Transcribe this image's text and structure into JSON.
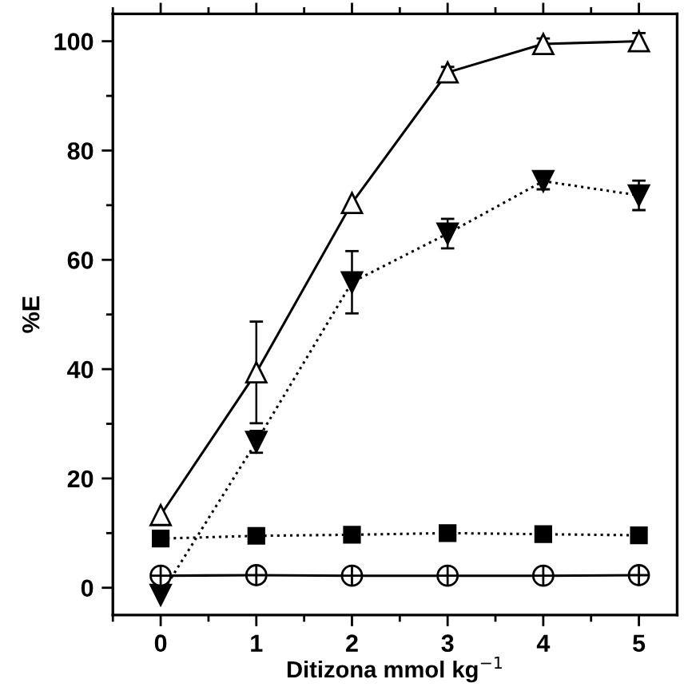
{
  "chart_data": {
    "type": "line",
    "xlabel": "Ditizona mmol kg$^{−1}$",
    "ylabel": "%E",
    "x": [
      0,
      1,
      2,
      3,
      4,
      5
    ],
    "xlim": [
      -0.5,
      5.4
    ],
    "xticks": [
      0,
      1,
      2,
      3,
      4,
      5
    ],
    "ylim": [
      -5,
      105
    ],
    "yticks": [
      0,
      20,
      40,
      60,
      80,
      100
    ],
    "grid": false,
    "legend": false,
    "series": [
      {
        "color": "#000000",
        "marker": "triangle",
        "line_style": "solid",
        "values": [
          13.3,
          39.4,
          70.4,
          94.3,
          99.5,
          100
        ],
        "errors": [
          null,
          9.3,
          null,
          1,
          1,
          1.5
        ]
      },
      {
        "color": "#000000",
        "marker": "triangle_down",
        "line_style": "dotted",
        "values": [
          -1.3,
          26.7,
          55.9,
          64.8,
          74.4,
          71.8
        ],
        "errors": [
          null,
          2,
          5.7,
          2.7,
          1.5,
          2.7
        ]
      },
      {
        "color": "#000000",
        "marker": "square",
        "line_style": "dotted",
        "values": [
          9,
          9.5,
          9.7,
          10,
          9.8,
          9.6
        ]
      },
      {
        "color": "#000000",
        "marker": "circle_plus",
        "line_style": "solid",
        "values": [
          2.2,
          2.3,
          2.2,
          2.2,
          2.2,
          2.3
        ]
      }
    ]
  }
}
